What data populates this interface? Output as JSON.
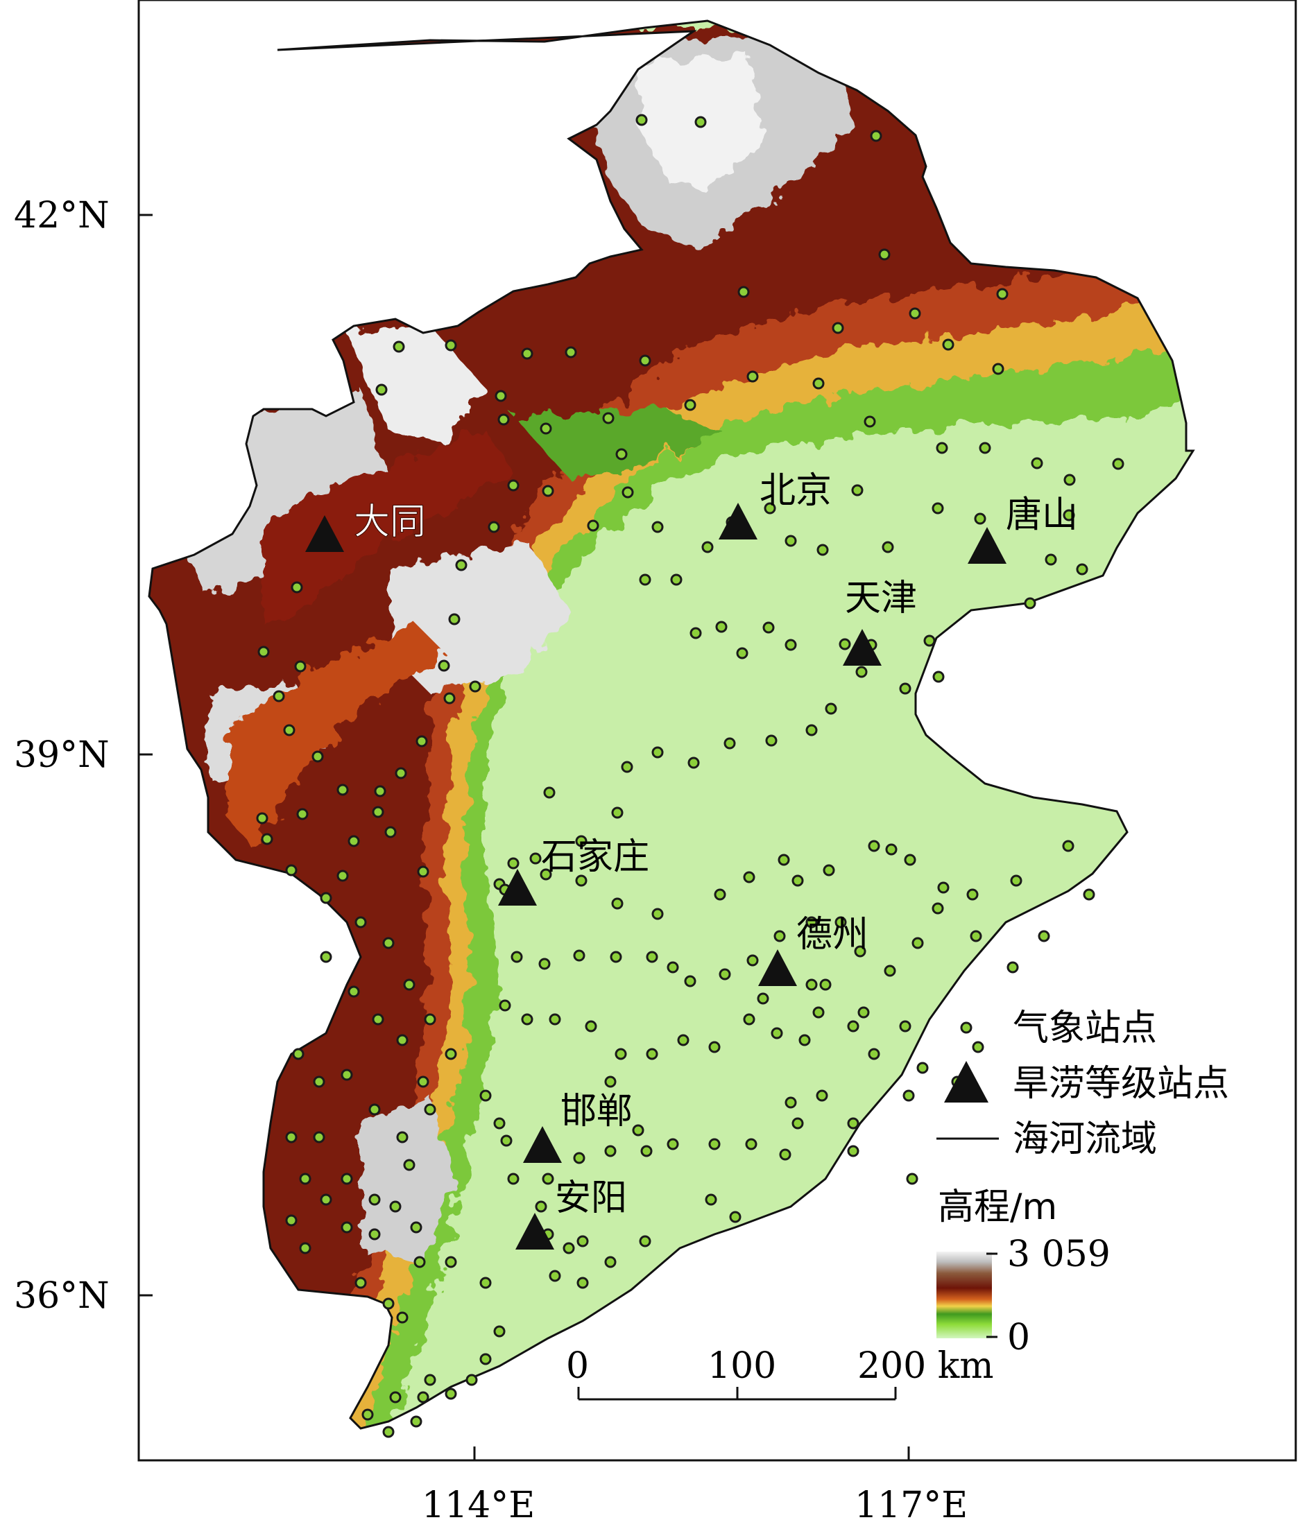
{
  "map": {
    "lat_ticks": [
      "42°N",
      "39°N",
      "36°N"
    ],
    "lon_ticks": [
      "114°E",
      "117°E"
    ],
    "cities": [
      {
        "name": "大同"
      },
      {
        "name": "北京"
      },
      {
        "name": "唐山"
      },
      {
        "name": "天津"
      },
      {
        "name": "石家庄"
      },
      {
        "name": "德州"
      },
      {
        "name": "邯郸"
      },
      {
        "name": "安阳"
      }
    ],
    "legend": {
      "station": "气象站点",
      "drought_station": "旱涝等级站点",
      "basin": "海河流域",
      "elevation_title": "高程/m",
      "elevation_max": "3 059",
      "elevation_min": "0"
    },
    "scale_bar": {
      "labels": [
        "0",
        "100",
        "200 km"
      ]
    },
    "colors": {
      "frame": "#111111",
      "station_fill": "#8ccf3a",
      "plain": "#c8eea8",
      "low_green": "#6fbf2e",
      "orange": "#d4621e",
      "dark_red": "#7a1a08",
      "brown": "#8f3a1c",
      "snow": "#f2f2f2",
      "triangle": "#111111"
    }
  }
}
